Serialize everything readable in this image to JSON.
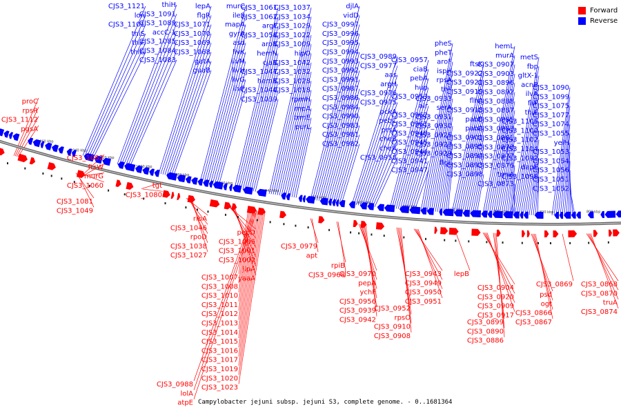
{
  "legend": {
    "forward": {
      "label": "Forward",
      "color": "#ff0000"
    },
    "reverse": {
      "label": "Reverse",
      "color": "#0000ff"
    }
  },
  "caption": "Campylobacter jejuni subsp. jejuni S3, complete genome. - 0..1681364",
  "backbone_ticks": [
    "1060 kbp",
    "1040 kbp",
    "1020 kbp",
    "1000 kbp",
    "980 kbp",
    "960 kbp",
    "940 kbp",
    "920 kbp",
    "900 kbp",
    "880 kbp",
    "860 kbp",
    "840 kbp",
    "820 kbp",
    "800 kbp"
  ],
  "reverse_labels": [
    "CJS3_1121",
    "lon",
    "CJS3_1101",
    "thiS",
    "thiF",
    "thiG",
    "thiH",
    "CJS3_1091",
    "CJS3_1089",
    "accC-1",
    "CJS3_1085",
    "CJS3_1084",
    "CJS3_1083",
    "lepA",
    "flgR",
    "CJS3_1071",
    "CJS3_1070",
    "CJS3_1069",
    "CJS3_1068",
    "gatA",
    "guaB",
    "murC",
    "ileS",
    "mapA",
    "gyrA",
    "asd",
    "livK",
    "livM",
    "livH",
    "livG",
    "livF",
    "CJS3_1061",
    "CJS3_1062",
    "argF",
    "CJS3_1058",
    "aroB",
    "hemN",
    "cjaB",
    "CJS3_1047",
    "hemB",
    "CJS3_1040",
    "CJS3_1039",
    "CJS3_1037",
    "CJS3_1034",
    "CJS3_1029",
    "CJS3_1022",
    "CJS3_1009",
    "hipO",
    "CJS3_1042",
    "CJS3_1032",
    "CJS3_1028",
    "CJS3_1018",
    "rpmH",
    "rnpA",
    "trmE",
    "purL",
    "djlA",
    "vidD",
    "CJS3_0997",
    "CJS3_0996",
    "CJS3_0995",
    "CJS3_0994",
    "CJS3_0993",
    "CJS3_0992",
    "CJS3_0991",
    "CJS3_0987",
    "CJS3_0986",
    "CJS3_0984",
    "CJS3_0990",
    "CJS3_0983",
    "CJS3_0981",
    "CJS3_0982",
    "CJS3_0989",
    "CJS3_0977",
    "aas",
    "argH",
    "CJS3_0976",
    "CJS3_0975",
    "pckA",
    "pebC",
    "prsA",
    "cheB",
    "cheR",
    "CJS3_0958",
    "CJS3_0957",
    "ciaB",
    "pebA",
    "hup",
    "CJS3_0953",
    "alr",
    "CJS3_0962",
    "CJS3_0961",
    "CJS3_0948",
    "CJS3_0945",
    "CJS3_0944",
    "CJS3_0941",
    "CJS3_0947",
    "pheS",
    "pheT",
    "aroF",
    "ispH",
    "rpsA",
    "thiI",
    "CJS3_0933",
    "serA",
    "CJS3_0931",
    "CJS3_0930",
    "CJS3_0925",
    "CJS3_0923",
    "CJS3_0929",
    "flgL",
    "ftsK",
    "CJS3_0922",
    "CJS3_0921",
    "CJS3_0919",
    "flhA",
    "CJS3_0918",
    "pabB",
    "pabA",
    "CJS3_0901",
    "CJS3_0895",
    "CJS3_0894",
    "CJS3_0893",
    "CJS3_0898",
    "hemL",
    "murA",
    "CJS3_0907",
    "CJS3_0903",
    "CJS3_0896",
    "CJS3_0892",
    "CJS3_0888",
    "CJS3_0887",
    "CJS3_0885",
    "CJS3_0883",
    "CJS3_0881",
    "CJS3_0878",
    "CJS3_0877",
    "CJS3_0876",
    "trmA",
    "CJS3_0873",
    "metS",
    "fbp",
    "gltX-1",
    "acnB",
    "ilvA",
    "fliP",
    "thiE",
    "CJS3_1105",
    "CJS3_1100",
    "CJS3_1102",
    "CJS3_1104",
    "CJS3_1092",
    "dapE",
    "CJS3_1098",
    "CJS3_1090",
    "CJS3_1099",
    "CJS3_1075",
    "CJS3_1077",
    "CJS3_1074",
    "CJS3_1055",
    "yeiH",
    "CJS3_1053",
    "CJS3_1054",
    "CJS3_1056",
    "CJS3_1051",
    "CJS3_1052"
  ],
  "forward_labels": [
    "proC",
    "rpsR",
    "CJS3_1112",
    "pgsA",
    "CJS3_1082",
    "ftsW",
    "murG",
    "CJS3_1060",
    "tgt",
    "CJS3_1080",
    "CJS3_1081",
    "CJS3_1049",
    "ribA",
    "CJS3_1046",
    "rpoD",
    "CJS3_1038",
    "CJS3_1027",
    "pepD",
    "CJS3_1006",
    "CJS3_1001",
    "CJS3_1002",
    "jlpA",
    "yaaA",
    "CJS3_1007",
    "CJS3_1008",
    "CJS3_1010",
    "CJS3_1011",
    "CJS3_1012",
    "CJS3_1013",
    "CJS3_1014",
    "CJS3_1015",
    "CJS3_1016",
    "CJS3_1017",
    "CJS3_1019",
    "CJS3_1020",
    "CJS3_1023",
    "CJS3_0988",
    "lolA",
    "atpE",
    "CJS3_0979",
    "apt",
    "rpiB",
    "CJS3_0968",
    "CJS3_0970",
    "pepA",
    "ychF",
    "CJS3_0956",
    "CJS3_0939",
    "CJS3_0942",
    "CJS3_0943",
    "CJS3_0949",
    "CJS3_0950",
    "CJS3_0951",
    "CJS3_0952",
    "rpsO",
    "CJS3_0910",
    "CJS3_0908",
    "lepB",
    "CJS3_0904",
    "CJS3_0920",
    "CJS3_0909",
    "CJS3_0917",
    "CJS3_0899",
    "CJS3_0890",
    "CJS3_0886",
    "psd",
    "ogt",
    "CJS3_0866",
    "CJS3_0867",
    "CJS3_0869",
    "CJS3_0868",
    "CJS3_0870",
    "truA",
    "CJS3_0874"
  ]
}
